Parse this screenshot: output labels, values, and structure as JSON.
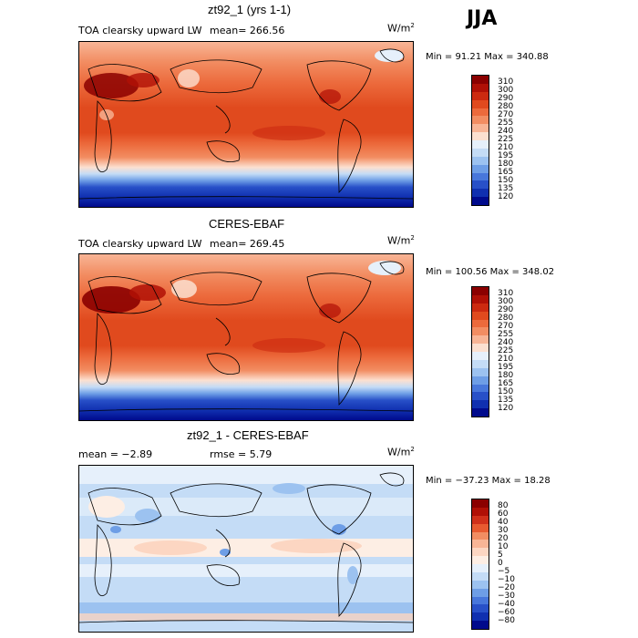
{
  "season": "JJA",
  "panels": [
    {
      "title": "zt92_1 (yrs 1-1)",
      "variable": "TOA clearsky upward LW",
      "stat1": "mean= 266.56",
      "stat2": "",
      "units": "W/m",
      "units_sup": "2",
      "minmax": "Min =  91.21 Max = 340.88"
    },
    {
      "title": "CERES-EBAF",
      "variable": "TOA clearsky upward LW",
      "stat1": "mean= 269.45",
      "stat2": "",
      "units": "W/m",
      "units_sup": "2",
      "minmax": "Min = 100.56 Max = 348.02"
    },
    {
      "title": "zt92_1 - CERES-EBAF",
      "variable": "",
      "stat1": "mean =  −2.89",
      "stat2": "rmse =   5.79",
      "units": "W/m",
      "units_sup": "2",
      "minmax": "Min = −37.23 Max =  18.28"
    }
  ],
  "colorbar_abs": {
    "levels": [
      "310",
      "300",
      "290",
      "280",
      "270",
      "255",
      "240",
      "225",
      "210",
      "195",
      "180",
      "165",
      "150",
      "135",
      "120"
    ],
    "colors": [
      "#8b0000",
      "#b01006",
      "#cc2a10",
      "#e04a1e",
      "#ec6a3c",
      "#f28d62",
      "#f8b596",
      "#fce0d0",
      "#e6f0fb",
      "#c4dcf6",
      "#9cc2f0",
      "#6e9ee6",
      "#4877db",
      "#2850c8",
      "#1030b0",
      "#000a8c"
    ]
  },
  "colorbar_diff": {
    "levels": [
      "80",
      "60",
      "40",
      "30",
      "20",
      "10",
      "5",
      "0",
      "−5",
      "−10",
      "−20",
      "−30",
      "−40",
      "−60",
      "−80"
    ],
    "colors": [
      "#8b0000",
      "#b01006",
      "#d0301a",
      "#e85a30",
      "#f28d62",
      "#f8b596",
      "#fcd6c2",
      "#fdeee4",
      "#e6f0fb",
      "#c4dcf6",
      "#9cc2f0",
      "#6e9ee6",
      "#4877db",
      "#2850c8",
      "#1030b0",
      "#000a8c"
    ]
  }
}
